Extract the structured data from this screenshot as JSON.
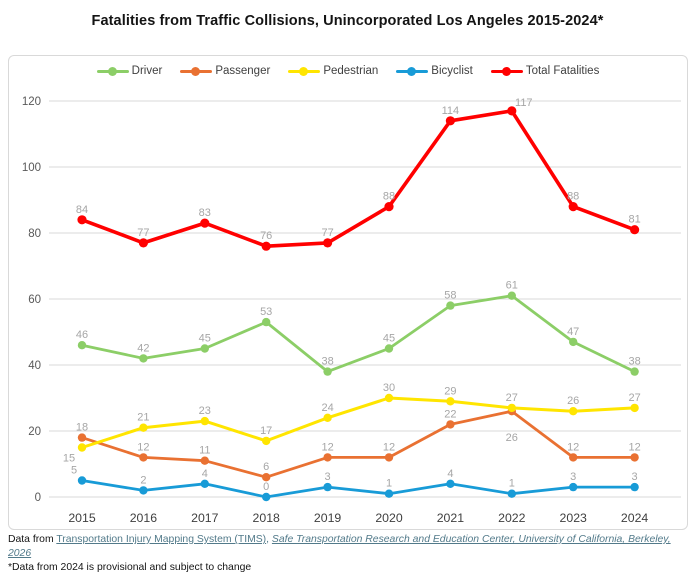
{
  "title": "Fatalities from Traffic Collisions, Unincorporated Los Angeles 2015-2024*",
  "chart_data": {
    "type": "line",
    "title": "Fatalities from Traffic Collisions, Unincorporated Los Angeles 2015-2024*",
    "categories": [
      "2015",
      "2016",
      "2017",
      "2018",
      "2019",
      "2020",
      "2021",
      "2022",
      "2023",
      "2024"
    ],
    "series": [
      {
        "name": "Driver",
        "color": "#8CCE67",
        "line_width": 2.8,
        "dot_radius": 4.2,
        "values": [
          46,
          42,
          45,
          53,
          38,
          45,
          58,
          61,
          47,
          38
        ],
        "label_offsets": {}
      },
      {
        "name": "Passenger",
        "color": "#E97132",
        "line_width": 2.8,
        "dot_radius": 4.2,
        "values": [
          18,
          12,
          11,
          6,
          12,
          12,
          22,
          26,
          12,
          12
        ],
        "label_offsets": {
          "7": [
            0,
            37
          ]
        }
      },
      {
        "name": "Pedestrian",
        "color": "#FFE500",
        "line_width": 3.0,
        "dot_radius": 4.2,
        "values": [
          15,
          21,
          23,
          17,
          24,
          30,
          29,
          27,
          26,
          27
        ],
        "label_offsets": {
          "0": [
            -13,
            21
          ]
        }
      },
      {
        "name": "Bicyclist",
        "color": "#189BD7",
        "line_width": 2.8,
        "dot_radius": 4.2,
        "values": [
          5,
          2,
          4,
          0,
          3,
          1,
          4,
          1,
          3,
          3
        ],
        "label_offsets": {
          "0": [
            -8,
            0
          ]
        }
      },
      {
        "name": "Total Fatalities",
        "color": "#FF0000",
        "line_width": 3.6,
        "dot_radius": 4.6,
        "values": [
          84,
          77,
          83,
          76,
          77,
          88,
          114,
          117,
          88,
          81
        ],
        "label_offsets": {
          "7": [
            12,
            2
          ]
        }
      }
    ],
    "ylim": [
      0,
      120
    ],
    "yticks": [
      0,
      20,
      40,
      60,
      80,
      100,
      120
    ],
    "grid": true,
    "legend_position": "top",
    "xlabel": "",
    "ylabel": "",
    "data_label_color": "#A6A6A6",
    "ytick_color": "#595959",
    "xtick_color": "#3f3f3f",
    "gridline_color": "#D9D9D9"
  },
  "footer": {
    "prefix": "Data from ",
    "link1": "Transportation Injury Mapping System (TIMS)",
    "separator": ", ",
    "link2": "Safe Transportation Research and Education Center, University of California, Berkeley, 2026",
    "note": "*Data from 2024 is provisional and subject to change",
    "link_color": "#527A8A"
  }
}
